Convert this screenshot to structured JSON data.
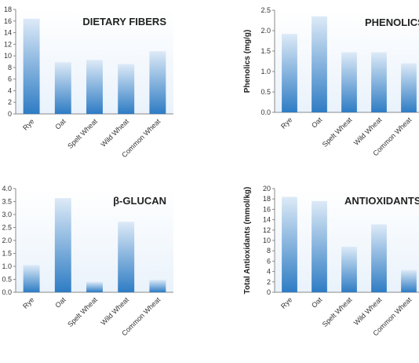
{
  "chart_data": [
    {
      "type": "bar",
      "title": "DIETARY FIBERS",
      "ylabel": "",
      "categories": [
        "Rye",
        "Oat",
        "Spelt Wheat",
        "Wild Wheat",
        "Common Wheat"
      ],
      "values": [
        16.4,
        8.9,
        9.3,
        8.6,
        10.8
      ],
      "ylim": [
        0,
        18
      ],
      "yticks": [
        0,
        2,
        4,
        6,
        8,
        10,
        12,
        14,
        16,
        18
      ],
      "ytick_labels": [
        "0",
        "2",
        "4",
        "6",
        "8",
        "10",
        "12",
        "14",
        "16",
        "18"
      ]
    },
    {
      "type": "bar",
      "title": "PHENOLICS",
      "ylabel": "Phenolics (mg/g)",
      "categories": [
        "Rye",
        "Oat",
        "Spelt Wheat",
        "Wild Wheat",
        "Common Wheat"
      ],
      "values": [
        1.92,
        2.35,
        1.47,
        1.47,
        1.2
      ],
      "ylim": [
        0,
        2.5
      ],
      "yticks": [
        0,
        0.5,
        1.0,
        1.5,
        2.0,
        2.5
      ],
      "ytick_labels": [
        "0.0",
        "0.5",
        "1.0",
        "1.5",
        "2.0",
        "2.5"
      ]
    },
    {
      "type": "bar",
      "title": "β-GLUCAN",
      "ylabel": "",
      "categories": [
        "Rye",
        "Oat",
        "Spelt Wheat",
        "Wild Wheat",
        "Common Wheat"
      ],
      "values": [
        1.05,
        3.63,
        0.4,
        2.72,
        0.48
      ],
      "ylim": [
        0,
        4.0
      ],
      "yticks": [
        0,
        0.5,
        1.0,
        1.5,
        2.0,
        2.5,
        3.0,
        3.5,
        4.0
      ],
      "ytick_labels": [
        "0.0",
        "0.5",
        "1.0",
        "1.5",
        "2.0",
        "2.5",
        "3.0",
        "3.5",
        "4.0"
      ]
    },
    {
      "type": "bar",
      "title": "ANTIOXIDANTS",
      "ylabel": "Total Antioxidants (mmol/kg)",
      "categories": [
        "Rye",
        "Oat",
        "Spelt Wheat",
        "Wild Wheat",
        "Common Wheat"
      ],
      "values": [
        18.4,
        17.6,
        8.8,
        13.1,
        4.3
      ],
      "ylim": [
        0,
        20
      ],
      "yticks": [
        0,
        2,
        4,
        6,
        8,
        10,
        12,
        14,
        16,
        18,
        20
      ],
      "ytick_labels": [
        "0",
        "2",
        "4",
        "6",
        "8",
        "10",
        "12",
        "14",
        "16",
        "18",
        "20"
      ]
    }
  ],
  "colors": {
    "bar_top": "#ddeaf7",
    "bar_bottom": "#2e7cc4",
    "panel_top": "#ffffff",
    "panel_bottom": "#e9f2fb",
    "axis": "#8a8a8a"
  }
}
